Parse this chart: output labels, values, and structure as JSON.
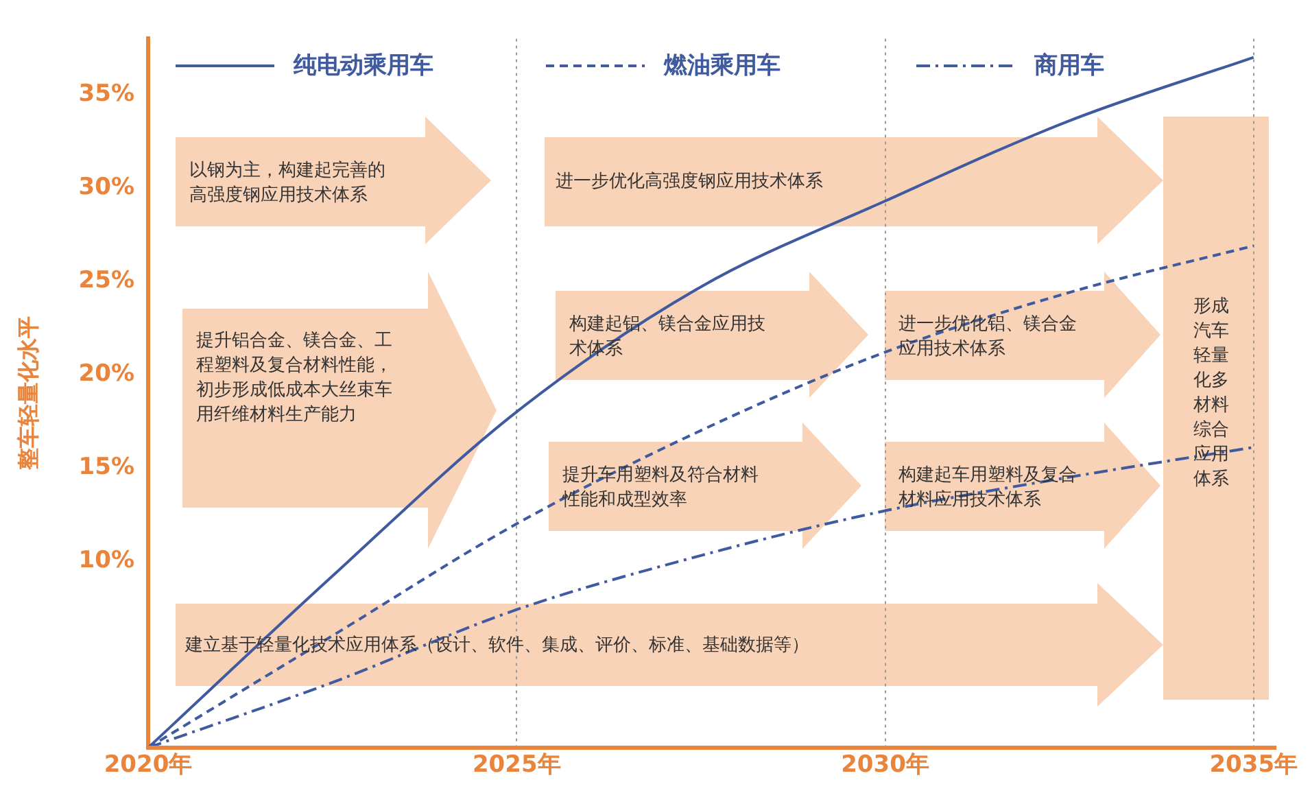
{
  "chart_data": {
    "type": "line",
    "ylabel": "整车轻量化水平",
    "x": [
      2020,
      2022.5,
      2025,
      2027.5,
      2030,
      2032.5,
      2035
    ],
    "series": [
      {
        "name": "纯电动乘用车",
        "color": "#3f5a9e",
        "line_style": "solid",
        "values": [
          0,
          9.2,
          18.0,
          24.7,
          29.3,
          33.6,
          37
        ]
      },
      {
        "name": "燃油乘用车",
        "color": "#3f5a9e",
        "line_style": "dashed",
        "values": [
          0,
          6.0,
          12.0,
          17.0,
          21.2,
          24.4,
          26.9
        ]
      },
      {
        "name": "商用车",
        "color": "#3f5a9e",
        "line_style": "dashdot",
        "values": [
          0,
          3.5,
          7.4,
          10.3,
          12.7,
          14.5,
          16.1
        ]
      }
    ],
    "xlim": [
      2020,
      2035.3
    ],
    "xticks": [
      {
        "value": 2020,
        "label": "2020年"
      },
      {
        "value": 2025,
        "label": "2025年"
      },
      {
        "value": 2030,
        "label": "2030年"
      },
      {
        "value": 2035,
        "label": "2035年"
      }
    ],
    "ylim": [
      0,
      38
    ],
    "yticks": [
      {
        "value": 10,
        "label": "10%"
      },
      {
        "value": 15,
        "label": "15%"
      },
      {
        "value": 20,
        "label": "20%"
      },
      {
        "value": 25,
        "label": "25%"
      },
      {
        "value": 30,
        "label": "30%"
      },
      {
        "value": 35,
        "label": "35%"
      }
    ],
    "grid": "x",
    "legend": "top",
    "marker": "none",
    "annotations": [
      "以钢为主，构建起完善的高强度钢应用技术体系",
      "进一步优化高强度钢应用技术体系",
      "提升铝合金、镁合金、工程塑料及复合材料性能，初步形成低成本大丝束车用纤维材料生产能力",
      "构建起铝、镁合金应用技术体系",
      "进一步优化铝、镁合金应用技术体系",
      "提升车用塑料及符合材料性能和成型效率",
      "构建起车用塑料及复合材料应用技术体系",
      "建立基于轻量化技术应用体系（设计、软件、集成、评价、标准、基础数据等）",
      "形成汽车轻量化多材料综合应用体系"
    ]
  }
}
